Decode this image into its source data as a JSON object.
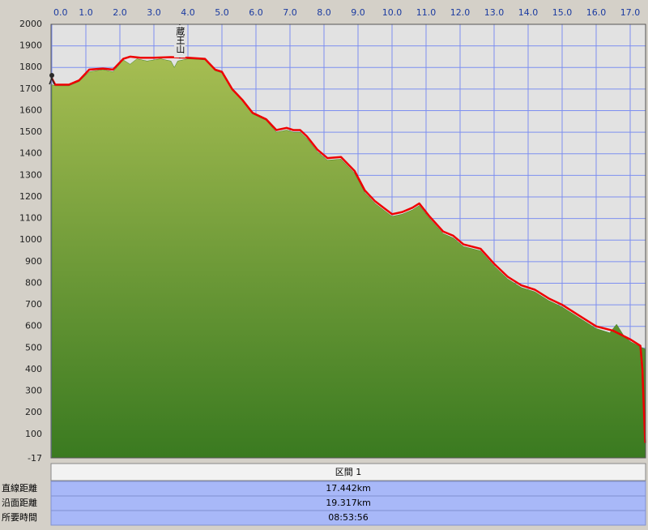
{
  "chart_data": {
    "type": "line",
    "annotation": {
      "text": "蔵王山",
      "x": 3.76
    },
    "xlim": [
      0,
      17.44
    ],
    "xticks": [
      {
        "value": 0,
        "label": "0.0"
      },
      {
        "value": 1,
        "label": "1.0"
      },
      {
        "value": 2,
        "label": "2.0"
      },
      {
        "value": 3,
        "label": "3.0"
      },
      {
        "value": 4,
        "label": "4.0"
      },
      {
        "value": 5,
        "label": "5.0"
      },
      {
        "value": 6,
        "label": "6.0"
      },
      {
        "value": 7,
        "label": "7.0"
      },
      {
        "value": 8,
        "label": "8.0"
      },
      {
        "value": 9,
        "label": "9.0"
      },
      {
        "value": 10,
        "label": "10.0"
      },
      {
        "value": 11,
        "label": "11.0"
      },
      {
        "value": 12,
        "label": "12.0"
      },
      {
        "value": 13,
        "label": "13.0"
      },
      {
        "value": 14,
        "label": "14.0"
      },
      {
        "value": 15,
        "label": "15.0"
      },
      {
        "value": 16,
        "label": "16.0"
      },
      {
        "value": 17,
        "label": "17.0"
      }
    ],
    "ylim": [
      -17,
      2000
    ],
    "yticks": [
      2000,
      1900,
      1800,
      1700,
      1600,
      1500,
      1400,
      1300,
      1200,
      1100,
      1000,
      900,
      800,
      700,
      600,
      500,
      400,
      300,
      200,
      100,
      -17
    ],
    "grid": true,
    "series": [
      {
        "area": true,
        "color": "#3f7f22",
        "x": [
          0,
          0.1,
          0.5,
          0.8,
          1.1,
          1.5,
          1.8,
          2.1,
          2.3,
          2.5,
          2.8,
          3.2,
          3.5,
          3.6,
          3.7,
          4.0,
          4.5,
          4.8,
          5.0,
          5.3,
          5.6,
          5.9,
          6.3,
          6.6,
          6.9,
          7.1,
          7.3,
          7.5,
          7.8,
          8.1,
          8.5,
          8.9,
          9.2,
          9.5,
          10.0,
          10.3,
          10.6,
          10.8,
          11.1,
          11.5,
          11.8,
          12.1,
          12.6,
          13.0,
          13.4,
          13.8,
          14.2,
          14.6,
          15.0,
          15.5,
          16.0,
          16.4,
          16.6,
          16.8,
          17.0,
          17.3,
          17.44
        ],
        "values": [
          1720,
          1715,
          1715,
          1735,
          1780,
          1790,
          1780,
          1835,
          1815,
          1840,
          1830,
          1840,
          1830,
          1800,
          1830,
          1840,
          1835,
          1785,
          1775,
          1695,
          1645,
          1585,
          1555,
          1500,
          1510,
          1500,
          1500,
          1470,
          1410,
          1370,
          1375,
          1310,
          1220,
          1170,
          1110,
          1120,
          1140,
          1160,
          1100,
          1030,
          1010,
          970,
          950,
          880,
          820,
          780,
          760,
          720,
          690,
          640,
          590,
          570,
          610,
          560,
          530,
          505,
          495
        ]
      },
      {
        "color": "#ee0000",
        "x": [
          0,
          0.1,
          0.5,
          0.8,
          1.1,
          1.5,
          1.8,
          2.1,
          2.3,
          2.6,
          3.0,
          3.5,
          4.0,
          4.5,
          4.8,
          5.0,
          5.3,
          5.6,
          5.9,
          6.3,
          6.6,
          6.9,
          7.1,
          7.3,
          7.5,
          7.8,
          8.1,
          8.5,
          8.9,
          9.2,
          9.5,
          10.0,
          10.3,
          10.6,
          10.8,
          11.1,
          11.5,
          11.8,
          12.1,
          12.6,
          13.0,
          13.4,
          13.8,
          14.2,
          14.6,
          15.0,
          15.5,
          16.0,
          16.5,
          17.0,
          17.3,
          17.36,
          17.44
        ],
        "values": [
          1750,
          1720,
          1720,
          1740,
          1790,
          1795,
          1790,
          1840,
          1850,
          1845,
          1845,
          1848,
          1845,
          1840,
          1790,
          1780,
          1700,
          1650,
          1590,
          1560,
          1510,
          1520,
          1510,
          1510,
          1480,
          1420,
          1380,
          1385,
          1320,
          1230,
          1180,
          1120,
          1130,
          1150,
          1170,
          1110,
          1040,
          1020,
          980,
          960,
          890,
          830,
          790,
          770,
          730,
          700,
          650,
          600,
          580,
          540,
          510,
          400,
          60
        ]
      }
    ]
  },
  "table": {
    "header": "区間 1",
    "rows": [
      [
        "直線距離",
        "17.442km"
      ],
      [
        "沿面距離",
        "19.317km"
      ],
      [
        "所要時間",
        "08:53:56"
      ]
    ]
  }
}
